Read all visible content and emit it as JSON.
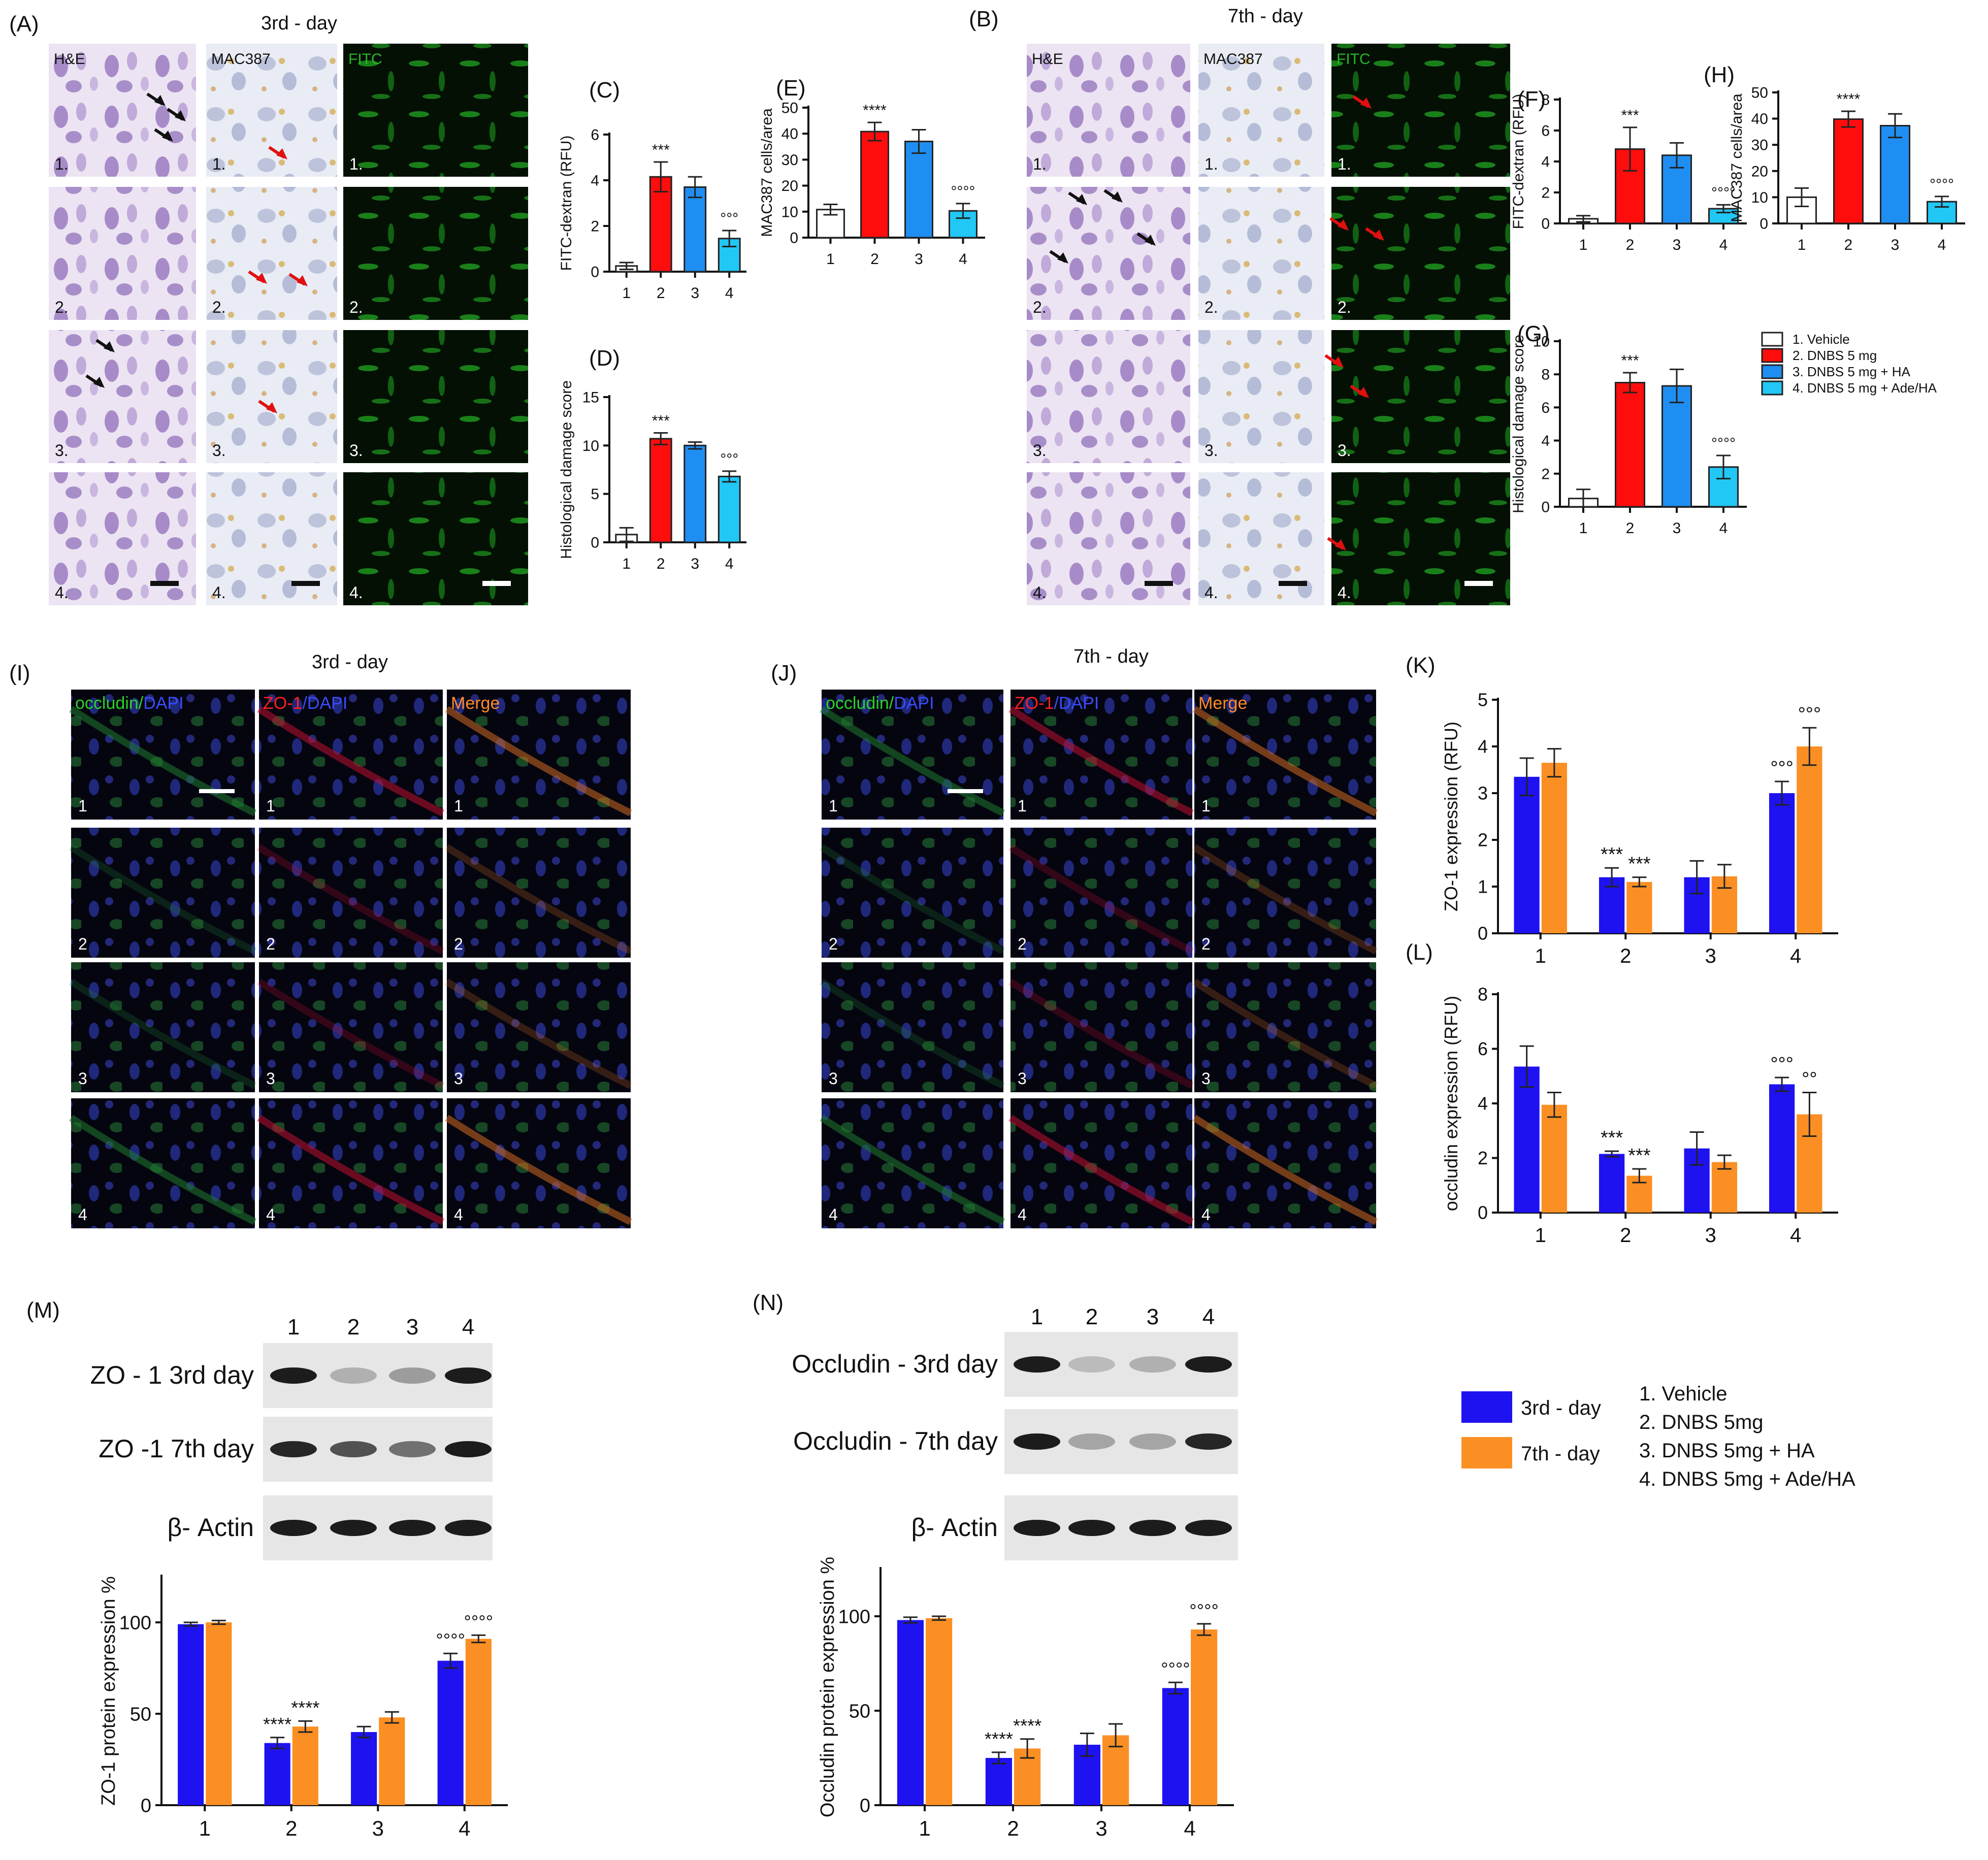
{
  "colors": {
    "vehicle": "#ffffff",
    "dnbs": "#ff0d0d",
    "dnbs_ha": "#1f8ef2",
    "dnbs_ade_ha": "#21c7f5",
    "day3": "#1e12f0",
    "day7": "#fb8f24",
    "he_stain": "#a98ac8",
    "mac387_stain": "#c3c7dc",
    "fitc": "#1aa81a",
    "blot_band": "#111111"
  },
  "panels": {
    "A": "(A)",
    "B": "(B)",
    "C": "(C)",
    "D": "(D)",
    "E": "(E)",
    "F": "(F)",
    "G": "(G)",
    "H": "(H)",
    "I": "(I)",
    "J": "(J)",
    "K": "(K)",
    "L": "(L)",
    "M": "(M)",
    "N": "(N)"
  },
  "day_titles": {
    "day3": "3rd - day",
    "day7": "7th - day"
  },
  "histology": {
    "stain_labels": [
      "H&E",
      "MAC387",
      "FITC"
    ],
    "row_labels": [
      "1.",
      "2.",
      "3.",
      "4."
    ]
  },
  "immuno": {
    "col_labels": [
      {
        "green": "occludin",
        "sep": "/",
        "blue": "DAPI"
      },
      {
        "red": "ZO-1",
        "sep": "/",
        "blue": "DAPI"
      },
      {
        "orange": "Merge"
      }
    ],
    "row_labels": [
      "1",
      "2",
      "3",
      "4"
    ]
  },
  "legend_top": [
    "1.  Vehicle",
    "2.  DNBS 5 mg",
    "3.  DNBS 5 mg + HA",
    "4.  DNBS 5 mg + Ade/HA"
  ],
  "legend_bottom": {
    "series": [
      "3rd - day",
      "7th - day"
    ],
    "groups": [
      "1. Vehicle",
      "2. DNBS 5mg",
      "3. DNBS 5mg + HA",
      "4. DNBS 5mg + Ade/HA"
    ]
  },
  "blots": {
    "M": {
      "lanes": [
        "1",
        "2",
        "3",
        "4"
      ],
      "rows": [
        "ZO - 1 3rd day",
        "ZO -1 7th day",
        "β- Actin"
      ],
      "band_intensity": [
        [
          0.95,
          0.25,
          0.35,
          0.95
        ],
        [
          0.9,
          0.7,
          0.55,
          0.95
        ],
        [
          0.95,
          0.95,
          0.95,
          0.95
        ]
      ]
    },
    "N": {
      "lanes": [
        "1",
        "2",
        "3",
        "4"
      ],
      "rows": [
        "Occludin - 3rd day",
        "Occludin - 7th day",
        "β- Actin"
      ],
      "band_intensity": [
        [
          0.95,
          0.2,
          0.25,
          0.95
        ],
        [
          0.95,
          0.3,
          0.3,
          0.9
        ],
        [
          0.95,
          0.95,
          0.95,
          0.95
        ]
      ]
    }
  },
  "chart_data": [
    {
      "id": "C",
      "type": "bar",
      "categories": [
        "1",
        "2",
        "3",
        "4"
      ],
      "values": [
        0.25,
        4.15,
        3.7,
        1.45
      ],
      "errors": [
        0.15,
        0.65,
        0.45,
        0.35
      ],
      "ylabel": "FITC-dextran (RFU)",
      "ylim": [
        0,
        6
      ],
      "yticks": [
        0,
        2,
        4,
        6
      ],
      "annotations": [
        "",
        "***",
        "",
        "°°°"
      ]
    },
    {
      "id": "D",
      "type": "bar",
      "categories": [
        "1",
        "2",
        "3",
        "4"
      ],
      "values": [
        0.8,
        10.7,
        10.0,
        6.8
      ],
      "errors": [
        0.7,
        0.6,
        0.35,
        0.55
      ],
      "ylabel": "Histological damage score",
      "ylim": [
        0,
        15
      ],
      "yticks": [
        0,
        5,
        10,
        15
      ],
      "annotations": [
        "",
        "***",
        "",
        "°°°"
      ]
    },
    {
      "id": "E",
      "type": "bar",
      "categories": [
        "1",
        "2",
        "3",
        "4"
      ],
      "values": [
        10.8,
        40.8,
        37.0,
        10.3
      ],
      "errors": [
        2.0,
        3.5,
        4.5,
        2.8
      ],
      "ylabel": "MAC387 cells/area",
      "ylim": [
        0,
        50
      ],
      "yticks": [
        0,
        10,
        20,
        30,
        40,
        50
      ],
      "annotations": [
        "",
        "****",
        "",
        "°°°°"
      ]
    },
    {
      "id": "F",
      "type": "bar",
      "categories": [
        "1",
        "2",
        "3",
        "4"
      ],
      "values": [
        0.3,
        4.8,
        4.4,
        0.95
      ],
      "errors": [
        0.2,
        1.4,
        0.8,
        0.25
      ],
      "ylabel": "FITC-dextran (RFU)",
      "ylim": [
        0,
        8
      ],
      "yticks": [
        0,
        2,
        4,
        6,
        8
      ],
      "annotations": [
        "",
        "***",
        "",
        "°°°°"
      ]
    },
    {
      "id": "G",
      "type": "bar",
      "categories": [
        "1",
        "2",
        "3",
        "4"
      ],
      "values": [
        0.5,
        7.5,
        7.3,
        2.4
      ],
      "errors": [
        0.55,
        0.6,
        1.0,
        0.7
      ],
      "ylabel": "Histological damage score",
      "ylim": [
        0,
        10
      ],
      "yticks": [
        0,
        2,
        4,
        6,
        8,
        10
      ],
      "annotations": [
        "",
        "***",
        "",
        "°°°°"
      ]
    },
    {
      "id": "H",
      "type": "bar",
      "categories": [
        "1",
        "2",
        "3",
        "4"
      ],
      "values": [
        10.0,
        39.8,
        37.3,
        8.3
      ],
      "errors": [
        3.5,
        3.0,
        4.5,
        2.0
      ],
      "ylabel": "MAC387 cells/area",
      "ylim": [
        0,
        50
      ],
      "yticks": [
        0,
        10,
        20,
        30,
        40,
        50
      ],
      "annotations": [
        "",
        "****",
        "",
        "°°°°"
      ]
    },
    {
      "id": "K",
      "type": "bar",
      "categories": [
        "1",
        "2",
        "3",
        "4"
      ],
      "series": [
        {
          "name": "3rd - day",
          "values": [
            3.35,
            1.2,
            1.2,
            3.0
          ],
          "errors": [
            0.4,
            0.2,
            0.35,
            0.25
          ],
          "annotations": [
            "",
            "***",
            "",
            "°°°"
          ]
        },
        {
          "name": "7th - day",
          "values": [
            3.65,
            1.1,
            1.22,
            4.0
          ],
          "errors": [
            0.3,
            0.1,
            0.25,
            0.4
          ],
          "annotations": [
            "",
            "***",
            "",
            "°°°"
          ]
        }
      ],
      "ylabel": "ZO-1 expression (RFU)",
      "ylim": [
        0,
        5
      ],
      "yticks": [
        0,
        1,
        2,
        3,
        4,
        5
      ]
    },
    {
      "id": "L",
      "type": "bar",
      "categories": [
        "1",
        "2",
        "3",
        "4"
      ],
      "series": [
        {
          "name": "3rd - day",
          "values": [
            5.35,
            2.15,
            2.35,
            4.7
          ],
          "errors": [
            0.75,
            0.1,
            0.6,
            0.25
          ],
          "annotations": [
            "",
            "***",
            "",
            "°°°"
          ]
        },
        {
          "name": "7th - day",
          "values": [
            3.95,
            1.35,
            1.85,
            3.6
          ],
          "errors": [
            0.45,
            0.25,
            0.25,
            0.8
          ],
          "annotations": [
            "",
            "***",
            "",
            "°°"
          ]
        }
      ],
      "ylabel": "occludin expression (RFU)",
      "ylim": [
        0,
        8
      ],
      "yticks": [
        0,
        2,
        4,
        6,
        8
      ]
    },
    {
      "id": "Mq",
      "type": "bar",
      "categories": [
        "1",
        "2",
        "3",
        "4"
      ],
      "series": [
        {
          "name": "3rd - day",
          "values": [
            99,
            34,
            40,
            79
          ],
          "errors": [
            1,
            3,
            3,
            4
          ],
          "annotations": [
            "",
            "****",
            "",
            "°°°°"
          ]
        },
        {
          "name": "7th - day",
          "values": [
            100,
            43,
            48,
            91
          ],
          "errors": [
            1,
            3,
            3,
            2
          ],
          "annotations": [
            "",
            "****",
            "",
            "°°°°"
          ]
        }
      ],
      "ylabel": "ZO-1 protein expression %",
      "ylim": [
        0,
        125
      ],
      "yticks": [
        0,
        50,
        100
      ]
    },
    {
      "id": "Nq",
      "type": "bar",
      "categories": [
        "1",
        "2",
        "3",
        "4"
      ],
      "series": [
        {
          "name": "3rd - day",
          "values": [
            98,
            25,
            32,
            62
          ],
          "errors": [
            1.5,
            3,
            6,
            3
          ],
          "annotations": [
            "",
            "****",
            "",
            "°°°°"
          ]
        },
        {
          "name": "7th - day",
          "values": [
            99,
            30,
            37,
            93
          ],
          "errors": [
            1,
            5,
            6,
            3
          ],
          "annotations": [
            "",
            "****",
            "",
            "°°°°"
          ]
        }
      ],
      "ylabel": "Occludin protein expression %",
      "ylim": [
        0,
        125
      ],
      "yticks": [
        0,
        50,
        100
      ]
    }
  ]
}
